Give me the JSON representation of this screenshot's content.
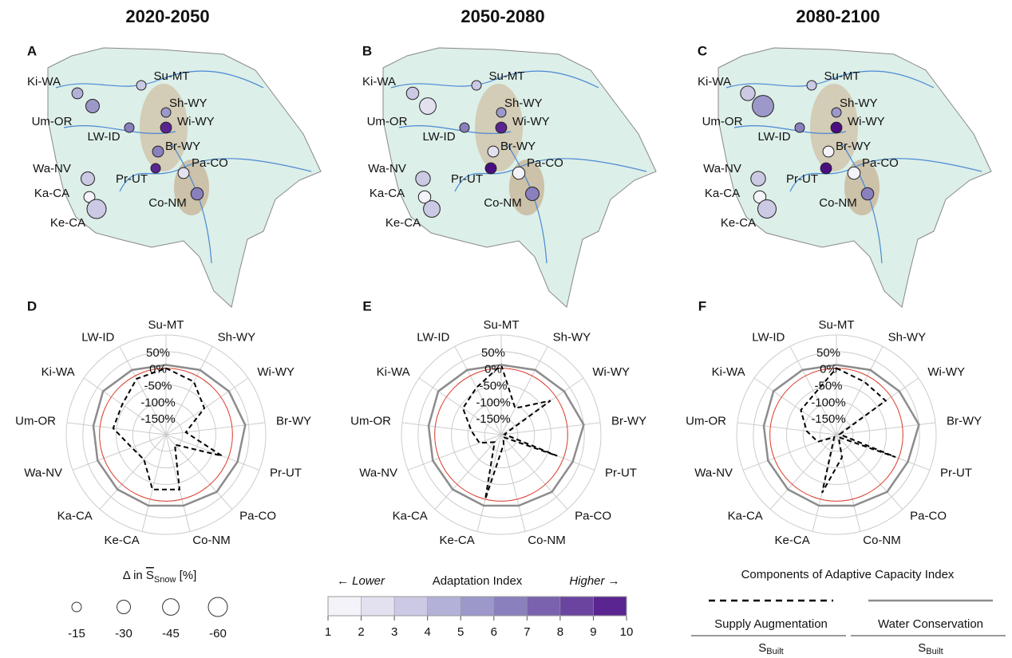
{
  "columns": [
    "2020-2050",
    "2050-2080",
    "2080-2100"
  ],
  "chart_data": [
    {
      "type": "bubble-map",
      "panel": "A",
      "categories": [
        "Ki-WA",
        "Um-OR",
        "Su-MT",
        "Sh-WY",
        "Wi-WY",
        "LW-ID",
        "Br-WY",
        "Pr-UT",
        "Pa-CO",
        "Co-NM",
        "Wa-NV",
        "Ka-CA",
        "Ke-CA"
      ],
      "values": [
        -20,
        -30,
        -15,
        -15,
        -20,
        -15,
        -20,
        -15,
        -20,
        -25,
        -30,
        -20,
        -60
      ],
      "index": [
        4,
        5,
        3,
        5,
        9,
        6,
        6,
        9,
        2,
        6,
        3,
        1,
        3
      ]
    },
    {
      "type": "bubble-map",
      "panel": "B",
      "categories": [
        "Ki-WA",
        "Um-OR",
        "Su-MT",
        "Sh-WY",
        "Wi-WY",
        "LW-ID",
        "Br-WY",
        "Pr-UT",
        "Pa-CO",
        "Co-NM",
        "Wa-NV",
        "Ka-CA",
        "Ke-CA"
      ],
      "values": [
        -25,
        -45,
        -15,
        -15,
        -20,
        -15,
        -20,
        -20,
        -25,
        -30,
        -35,
        -25,
        -45
      ],
      "index": [
        3,
        2,
        3,
        5,
        9,
        6,
        2,
        10,
        1,
        6,
        3,
        1,
        3
      ]
    },
    {
      "type": "bubble-map",
      "panel": "C",
      "categories": [
        "Ki-WA",
        "Um-OR",
        "Su-MT",
        "Sh-WY",
        "Wi-WY",
        "LW-ID",
        "Br-WY",
        "Pr-UT",
        "Pa-CO",
        "Co-NM",
        "Wa-NV",
        "Ka-CA",
        "Ke-CA"
      ],
      "values": [
        -35,
        -75,
        -15,
        -15,
        -20,
        -15,
        -20,
        -20,
        -25,
        -25,
        -35,
        -25,
        -55
      ],
      "index": [
        3,
        5,
        3,
        5,
        10,
        6,
        1,
        10,
        1,
        6,
        3,
        1,
        3
      ]
    },
    {
      "type": "radar",
      "panel": "D",
      "categories": [
        "Su-MT",
        "Sh-WY",
        "Wi-WY",
        "Br-WY",
        "Pr-UT",
        "Pa-CO",
        "Co-NM",
        "Ke-CA",
        "Ka-CA",
        "Wa-NV",
        "Um-OR",
        "Ki-WA",
        "LW-ID"
      ],
      "rlim": [
        -200,
        100
      ],
      "rticks": [
        {
          "value": 50,
          "label": "50%"
        },
        {
          "value": 0,
          "label": "0%"
        },
        {
          "value": -50,
          "label": "-50%"
        },
        {
          "value": -100,
          "label": "-100%"
        },
        {
          "value": -150,
          "label": "-150%"
        }
      ],
      "ref": 0,
      "ref_color": "#e0402f",
      "series": [
        {
          "color": "#000000",
          "dash": true,
          "values": [
            0,
            -20,
            -60,
            -140,
            -20,
            -160,
            -30,
            -30,
            -100,
            -90,
            -40,
            -40,
            -10
          ]
        },
        {
          "color": "#8c8c8c",
          "dash": false,
          "values": [
            10,
            20,
            30,
            40,
            30,
            30,
            20,
            20,
            20,
            20,
            20,
            30,
            20
          ]
        }
      ]
    },
    {
      "type": "radar",
      "panel": "E",
      "categories": [
        "Su-MT",
        "Sh-WY",
        "Wi-WY",
        "Br-WY",
        "Pr-UT",
        "Pa-CO",
        "Co-NM",
        "Ke-CA",
        "Ka-CA",
        "Wa-NV",
        "Um-OR",
        "Ki-WA",
        "LW-ID"
      ],
      "rlim": [
        -200,
        100
      ],
      "rticks": [
        {
          "value": 50,
          "label": "50%"
        },
        {
          "value": 0,
          "label": "0%"
        },
        {
          "value": -50,
          "label": "-50%"
        },
        {
          "value": -100,
          "label": "-100%"
        },
        {
          "value": -150,
          "label": "-150%"
        }
      ],
      "ref": 0,
      "ref_color": "#e0402f",
      "series": [
        {
          "color": "#000000",
          "dash": true,
          "values": [
            10,
            -110,
            -20,
            -190,
            -20,
            -190,
            -170,
            0,
            -170,
            -130,
            -110,
            -60,
            -40
          ]
        },
        {
          "color": "#8c8c8c",
          "dash": false,
          "values": [
            10,
            20,
            30,
            50,
            30,
            30,
            20,
            20,
            20,
            20,
            20,
            30,
            20
          ]
        }
      ]
    },
    {
      "type": "radar",
      "panel": "F",
      "categories": [
        "Su-MT",
        "Sh-WY",
        "Wi-WY",
        "Br-WY",
        "Pr-UT",
        "Pa-CO",
        "Co-NM",
        "Ke-CA",
        "Ka-CA",
        "Wa-NV",
        "Um-OR",
        "Ki-WA",
        "LW-ID"
      ],
      "rlim": [
        -200,
        100
      ],
      "rticks": [
        {
          "value": 50,
          "label": "50%"
        },
        {
          "value": 0,
          "label": "0%"
        },
        {
          "value": -50,
          "label": "-50%"
        },
        {
          "value": -100,
          "label": "-100%"
        },
        {
          "value": -150,
          "label": "-150%"
        }
      ],
      "ref": 0,
      "ref_color": "#e0402f",
      "series": [
        {
          "color": "#000000",
          "dash": true,
          "values": [
            0,
            -20,
            -20,
            -190,
            -10,
            -190,
            -130,
            -20,
            -190,
            -140,
            -110,
            -70,
            -60
          ]
        },
        {
          "color": "#8c8c8c",
          "dash": false,
          "values": [
            10,
            20,
            30,
            50,
            30,
            30,
            20,
            20,
            20,
            20,
            20,
            30,
            20
          ]
        }
      ]
    }
  ],
  "size_legend": {
    "prefix": "Δ in ",
    "symbol": "S",
    "subscript": "Snow",
    "unit": " [%]",
    "values": [
      -15,
      -30,
      -45,
      -60
    ]
  },
  "color_legend": {
    "left": "← Lower",
    "title": "Adaptation Index",
    "right": "Higher →",
    "ticks": [
      1,
      2,
      3,
      4,
      5,
      6,
      7,
      8,
      9,
      10
    ],
    "colors": [
      "#f4f3f9",
      "#e3e1f0",
      "#cbc9e3",
      "#b3b1d7",
      "#9c98ca",
      "#8a80bd",
      "#7a62ae",
      "#6a449f",
      "#5a2590",
      "#4a0e81"
    ]
  },
  "component_legend": {
    "title": "Components of Adaptive Capacity Index",
    "items": [
      {
        "label": "Supply Augmentation",
        "symbol": "S",
        "subscript": "Built",
        "color": "#000000",
        "dash": true
      },
      {
        "label": "Water Conservation",
        "symbol": "S",
        "subscript": "Built",
        "color": "#8c8c8c",
        "dash": false
      }
    ]
  }
}
